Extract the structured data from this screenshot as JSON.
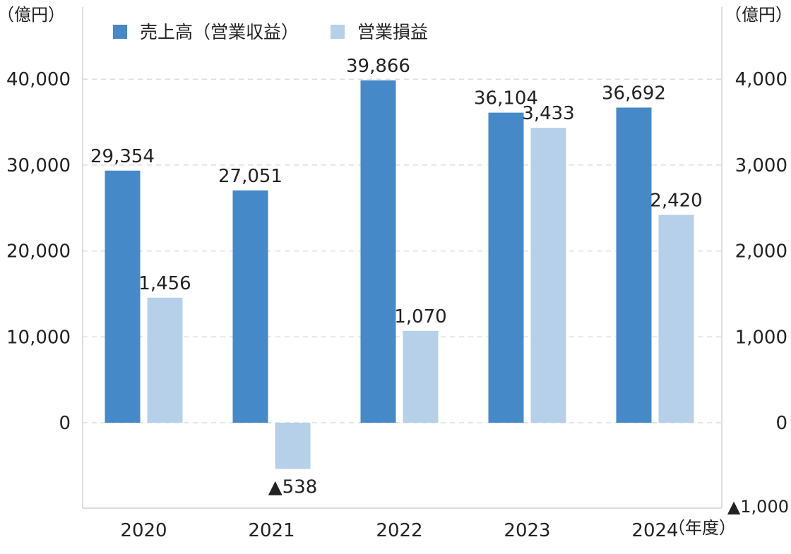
{
  "chart_data": {
    "type": "bar",
    "categories": [
      "2020",
      "2021",
      "2022",
      "2023",
      "2024"
    ],
    "series": [
      {
        "name": "売上高（営業収益）",
        "axis": "left",
        "color": "#4589c8",
        "values": [
          29354,
          27051,
          39866,
          36104,
          36692
        ],
        "labels": [
          "29,354",
          "27,051",
          "39,866",
          "36,104",
          "36,692"
        ]
      },
      {
        "name": "営業損益",
        "axis": "right",
        "color": "#b6d0ea",
        "values": [
          1456,
          -538,
          1070,
          3433,
          2420
        ],
        "labels": [
          "1,456",
          "▲538",
          "1,070",
          "3,433",
          "2,420"
        ]
      }
    ],
    "y_left": {
      "unit_label": "（億円）",
      "ticks": [
        0,
        10000,
        20000,
        30000,
        40000
      ],
      "tick_labels": [
        "0",
        "10,000",
        "20,000",
        "30,000",
        "40,000"
      ],
      "range": [
        -10000,
        40000
      ]
    },
    "y_right": {
      "unit_label": "（億円）",
      "ticks": [
        -1000,
        0,
        1000,
        2000,
        3000,
        4000
      ],
      "tick_labels": [
        "▲1,000",
        "0",
        "1,000",
        "2,000",
        "3,000",
        "4,000"
      ],
      "range": [
        -1000,
        4000
      ]
    },
    "x_unit_label": "（年度）",
    "grid": true,
    "legend_position": "top-left"
  }
}
